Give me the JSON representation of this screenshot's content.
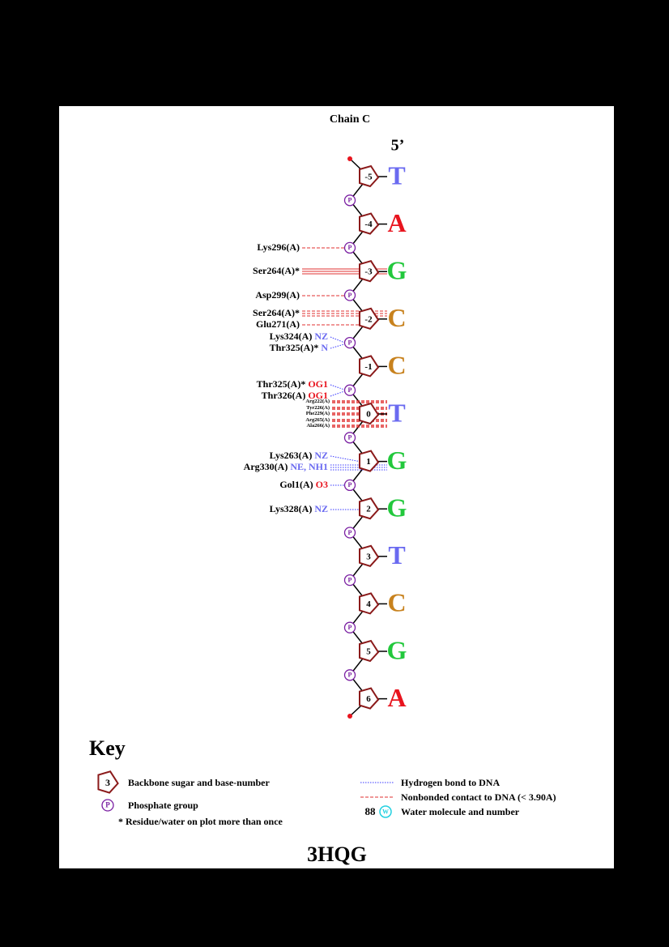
{
  "title": "Chain C",
  "end_label": "5’",
  "nucleotides": [
    {
      "number": -5,
      "base": "T",
      "color": "#6a6af0"
    },
    {
      "number": -4,
      "base": "A",
      "color": "#e8141e"
    },
    {
      "number": -3,
      "base": "G",
      "color": "#22c83c"
    },
    {
      "number": -2,
      "base": "C",
      "color": "#c8821e"
    },
    {
      "number": -1,
      "base": "C",
      "color": "#c8821e"
    },
    {
      "number": 0,
      "base": "T",
      "color": "#6a6af0"
    },
    {
      "number": 1,
      "base": "G",
      "color": "#22c83c"
    },
    {
      "number": 2,
      "base": "G",
      "color": "#22c83c"
    },
    {
      "number": 3,
      "base": "T",
      "color": "#6a6af0"
    },
    {
      "number": 4,
      "base": "C",
      "color": "#c8821e"
    },
    {
      "number": 5,
      "base": "G",
      "color": "#22c83c"
    },
    {
      "number": 6,
      "base": "A",
      "color": "#e8141e"
    }
  ],
  "phosphate_label": "P",
  "contacts": [
    {
      "residue": "Lys296(A)",
      "color": "#e03030"
    },
    {
      "residue": "Ser264(A)*",
      "color": "#e03030"
    },
    {
      "residue": "Asp299(A)",
      "color": "#e03030"
    },
    {
      "residue": "Ser264(A)*",
      "color": "#e03030"
    },
    {
      "residue": "Glu271(A)",
      "color": "#e03030"
    },
    {
      "residue": "Lys324(A)",
      "atom": "NZ",
      "atom_color": "#6a6af0",
      "color": "#3a3aff"
    },
    {
      "residue": "Thr325(A)*",
      "atom": "N",
      "atom_color": "#6a6af0",
      "color": "#3a3aff"
    },
    {
      "residue": "Thr325(A)*",
      "atom": "OG1",
      "atom_color": "#e8141e",
      "color": "#3a3aff"
    },
    {
      "residue": "Thr326(A)",
      "atom": "OG1",
      "atom_color": "#e8141e",
      "color": "#3a3aff"
    },
    {
      "residue": "Arg222(A)",
      "color": "#e03030"
    },
    {
      "residue": "Tyr226(A)",
      "color": "#e03030"
    },
    {
      "residue": "Phe229(A)",
      "color": "#e03030"
    },
    {
      "residue": "Arg265(A)",
      "color": "#e03030"
    },
    {
      "residue": "Ala266(A)",
      "color": "#e03030"
    },
    {
      "residue": "Lys263(A)",
      "atom": "NZ",
      "atom_color": "#6a6af0",
      "color": "#3a3aff"
    },
    {
      "residue": "Arg330(A)",
      "atom": "NE, NH1",
      "atom_color": "#6a6af0",
      "color": "#3a3aff"
    },
    {
      "residue": "Gol1(A)",
      "atom": "O3",
      "atom_color": "#e8141e",
      "color": "#3a3aff"
    },
    {
      "residue": "Lys328(A)",
      "atom": "NZ",
      "atom_color": "#6a6af0",
      "color": "#3a3aff"
    }
  ],
  "key": {
    "title": "Key",
    "sugar_example": 3,
    "sugar_text": "Backbone sugar and base-number",
    "phosphate_example": "P",
    "phosphate_text": "Phosphate group",
    "repeat_note": "* Residue/water on plot more than once",
    "hbond_text": "Hydrogen bond to DNA",
    "hbond_color": "#3a3aff",
    "nonbonded_text": "Nonbonded contact to DNA (< 3.90A)",
    "nonbonded_color": "#e03030",
    "water_example": 88,
    "water_symbol": "W",
    "water_text": "Water molecule and number"
  },
  "footer": "3HQG"
}
